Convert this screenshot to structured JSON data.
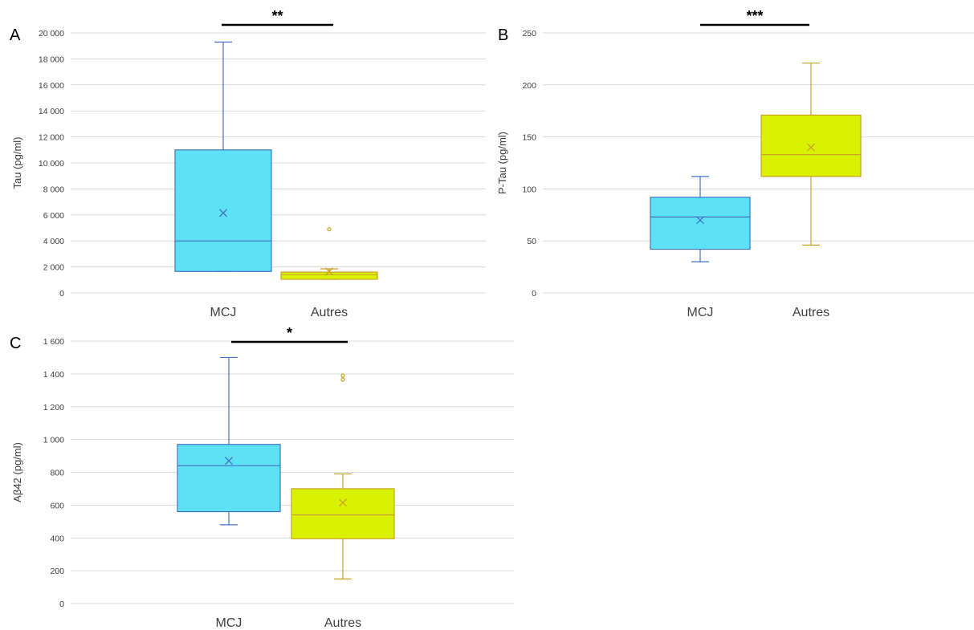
{
  "chart_data": [
    {
      "type": "box",
      "panel": "A",
      "ylabel": "Tau (pg/ml)",
      "ylim": [
        0,
        20000
      ],
      "yticks": [
        0,
        2000,
        4000,
        6000,
        8000,
        10000,
        12000,
        14000,
        16000,
        18000,
        20000
      ],
      "ytick_labels": [
        "0",
        "2 000",
        "4 000",
        "6 000",
        "8 000",
        "10 000",
        "12 000",
        "14 000",
        "16 000",
        "18 000",
        "20 000"
      ],
      "grid": true,
      "significance": "**",
      "categories": [
        "MCJ",
        "Autres"
      ],
      "series": [
        {
          "category": "MCJ",
          "min": 1650,
          "q1": 1650,
          "median": 4000,
          "q3": 11000,
          "max": 19300,
          "mean": 6150,
          "outliers": [],
          "fill": "#5ce1f5",
          "stroke": "#4472c4"
        },
        {
          "category": "Autres",
          "min": 1050,
          "q1": 1050,
          "median": 1400,
          "q3": 1600,
          "max": 1850,
          "mean": 1650,
          "outliers": [
            4900
          ],
          "fill": "#d9f200",
          "stroke": "#c9a227"
        }
      ]
    },
    {
      "type": "box",
      "panel": "B",
      "ylabel": "P-Tau (pg/ml)",
      "ylim": [
        0,
        250
      ],
      "yticks": [
        0,
        50,
        100,
        150,
        200,
        250
      ],
      "ytick_labels": [
        "0",
        "50",
        "100",
        "150",
        "200",
        "250"
      ],
      "grid": true,
      "significance": "***",
      "categories": [
        "MCJ",
        "Autres"
      ],
      "series": [
        {
          "category": "MCJ",
          "min": 30,
          "q1": 42,
          "median": 73,
          "q3": 92,
          "max": 112,
          "mean": 70,
          "outliers": [],
          "fill": "#5ce1f5",
          "stroke": "#4472c4"
        },
        {
          "category": "Autres",
          "min": 46,
          "q1": 112,
          "median": 133,
          "q3": 171,
          "max": 221,
          "mean": 140,
          "outliers": [],
          "fill": "#d9f200",
          "stroke": "#c9a227"
        }
      ]
    },
    {
      "type": "box",
      "panel": "C",
      "ylabel": "Aβ42 (pg/ml)",
      "ylim": [
        0,
        1600
      ],
      "yticks": [
        0,
        200,
        400,
        600,
        800,
        1000,
        1200,
        1400,
        1600
      ],
      "ytick_labels": [
        "0",
        "200",
        "400",
        "600",
        "800",
        "1 000",
        "1 200",
        "1 400",
        "1 600"
      ],
      "grid": true,
      "significance": "*",
      "categories": [
        "MCJ",
        "Autres"
      ],
      "series": [
        {
          "category": "MCJ",
          "min": 480,
          "q1": 560,
          "median": 840,
          "q3": 970,
          "max": 1500,
          "mean": 870,
          "outliers": [],
          "fill": "#5ce1f5",
          "stroke": "#4472c4"
        },
        {
          "category": "Autres",
          "min": 150,
          "q1": 395,
          "median": 540,
          "q3": 700,
          "max": 790,
          "mean": 615,
          "outliers": [
            1365,
            1390
          ],
          "fill": "#d9f200",
          "stroke": "#c9a227"
        }
      ]
    }
  ]
}
